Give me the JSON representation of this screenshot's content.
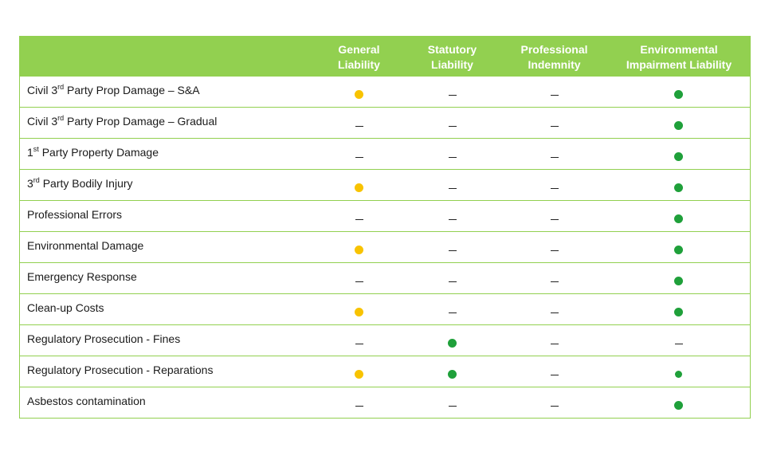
{
  "columns": [
    {
      "label": "",
      "width": 370
    },
    {
      "label": "General\nLiability",
      "width": 112
    },
    {
      "label": "Statutory\nLiability",
      "width": 122
    },
    {
      "label": "Professional\nIndemnity",
      "width": 134
    },
    {
      "label": "Environmental\nImpairment Liability",
      "width": 179
    }
  ],
  "rows": [
    {
      "label_parts": [
        "Civil 3",
        "rd",
        " Party Prop Damage – S&A"
      ],
      "cells": [
        "yellow",
        "dash",
        "dash",
        "green"
      ]
    },
    {
      "label_parts": [
        "Civil 3",
        "rd",
        " Party Prop Damage – Gradual"
      ],
      "cells": [
        "dash",
        "dash",
        "dash",
        "green"
      ]
    },
    {
      "label_parts": [
        "1",
        "st",
        " Party Property Damage"
      ],
      "cells": [
        "dash",
        "dash",
        "dash",
        "green"
      ]
    },
    {
      "label_parts": [
        "3",
        "rd",
        " Party Bodily Injury"
      ],
      "cells": [
        "yellow",
        "dash",
        "dash",
        "green"
      ]
    },
    {
      "label_parts": [
        "Professional Errors"
      ],
      "cells": [
        "dash",
        "dash",
        "dash",
        "green"
      ]
    },
    {
      "label_parts": [
        "Environmental Damage"
      ],
      "cells": [
        "yellow",
        "dash",
        "dash",
        "green"
      ]
    },
    {
      "label_parts": [
        "Emergency Response"
      ],
      "cells": [
        "dash",
        "dash",
        "dash",
        "green"
      ]
    },
    {
      "label_parts": [
        "Clean-up Costs"
      ],
      "cells": [
        "yellow",
        "dash",
        "dash",
        "green"
      ]
    },
    {
      "label_parts": [
        "Regulatory Prosecution - Fines"
      ],
      "cells": [
        "dash",
        "green",
        "dash",
        "dash"
      ]
    },
    {
      "label_parts": [
        "Regulatory Prosecution - Reparations"
      ],
      "cells": [
        "yellow",
        "green",
        "dash",
        "green-small"
      ]
    },
    {
      "label_parts": [
        "Asbestos contamination"
      ],
      "cells": [
        "dash",
        "dash",
        "dash",
        "green"
      ]
    }
  ],
  "colors": {
    "header_green": "#92d050",
    "dot_green": "#1fa03a",
    "dot_yellow": "#f8c300"
  }
}
